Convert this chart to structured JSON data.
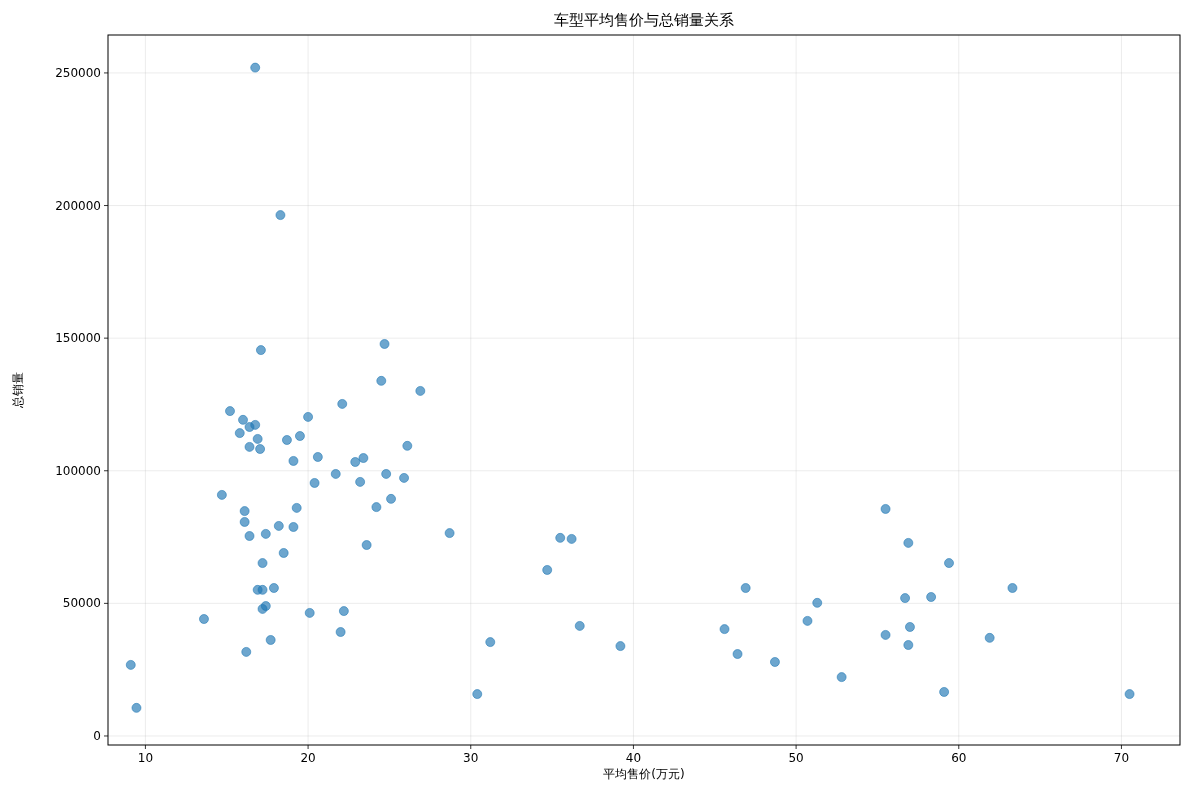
{
  "chart_data": {
    "type": "scatter",
    "title": "车型平均售价与总销量关系",
    "xlabel": "平均售价(万元)",
    "ylabel": "总销量",
    "xlim": [
      7.7,
      73.6
    ],
    "ylim": [
      -3400,
      264300
    ],
    "xticks": [
      10,
      20,
      30,
      40,
      50,
      60,
      70
    ],
    "yticks": [
      0,
      50000,
      100000,
      150000,
      200000,
      250000
    ],
    "grid": true,
    "marker": "circle",
    "series": [
      {
        "color": "#1f77b4",
        "x": [
          16.75,
          18.3,
          17.1,
          24.7,
          24.5,
          26.9,
          22.1,
          15.2,
          20.0,
          16.0,
          16.75,
          16.4,
          15.8,
          19.5,
          16.9,
          18.7,
          26.1,
          16.4,
          17.05,
          20.6,
          23.4,
          22.9,
          19.1,
          21.7,
          24.8,
          25.9,
          20.4,
          23.2,
          25.1,
          14.7,
          19.3,
          24.2,
          16.1,
          16.1,
          18.2,
          19.1,
          28.7,
          17.4,
          16.4,
          35.5,
          36.2,
          23.6,
          18.5,
          17.2,
          34.7,
          17.9,
          16.9,
          17.2,
          17.4,
          17.2,
          20.1,
          22.2,
          13.6,
          22.0,
          17.7,
          16.2,
          9.1,
          9.45,
          30.4,
          31.2,
          36.7,
          39.2,
          45.6,
          46.9,
          46.4,
          48.7,
          50.7,
          51.3,
          52.8,
          55.5,
          55.5,
          56.9,
          56.7,
          57.0,
          56.9,
          58.3,
          59.4,
          59.1,
          61.9,
          63.3,
          70.5
        ],
        "values": [
          252000,
          196400,
          145500,
          147800,
          133900,
          130100,
          125200,
          122500,
          120300,
          119200,
          117300,
          116500,
          114200,
          113100,
          112000,
          111600,
          109400,
          109000,
          108200,
          105200,
          104800,
          103300,
          103700,
          98800,
          98800,
          97300,
          95400,
          95800,
          89400,
          90900,
          86000,
          86300,
          84800,
          80700,
          79200,
          78800,
          76500,
          76200,
          75400,
          74700,
          74300,
          72000,
          69000,
          65200,
          62600,
          55800,
          55100,
          55100,
          49000,
          47900,
          46400,
          47100,
          44100,
          39200,
          36200,
          31700,
          26800,
          10600,
          15800,
          35400,
          41500,
          33900,
          40300,
          55800,
          30900,
          27900,
          43400,
          50200,
          22200,
          85600,
          38100,
          72800,
          52000,
          41100,
          34300,
          52400,
          65200,
          16600,
          37000,
          55800,
          15800
        ]
      }
    ]
  }
}
